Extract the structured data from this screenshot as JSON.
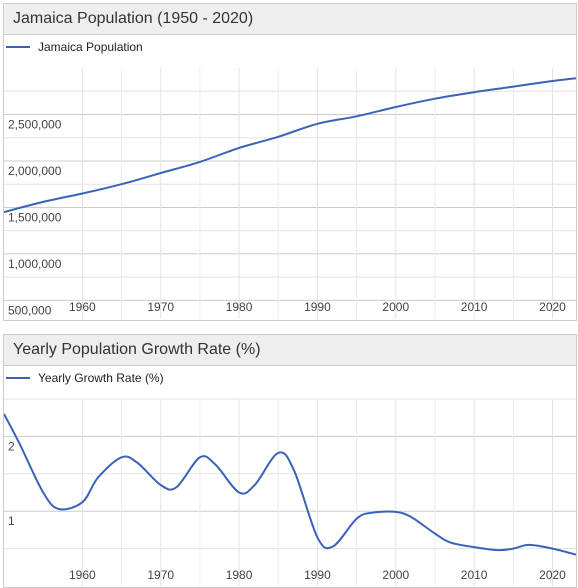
{
  "chart_data": [
    {
      "type": "line",
      "title": "Jamaica Population (1950 - 2020)",
      "series": [
        {
          "name": "Jamaica Population",
          "color": "#3a63b8",
          "x": [
            1950,
            1955,
            1960,
            1965,
            1970,
            1975,
            1980,
            1985,
            1990,
            1995,
            2000,
            2005,
            2010,
            2015,
            2020,
            2023
          ],
          "y": [
            1450000,
            1560000,
            1650000,
            1750000,
            1870000,
            1990000,
            2140000,
            2260000,
            2400000,
            2480000,
            2580000,
            2670000,
            2740000,
            2800000,
            2860000,
            2890000
          ]
        }
      ],
      "y_ticks": [
        500000,
        1000000,
        1500000,
        2000000,
        2500000
      ],
      "y_tick_labels": [
        "500,000",
        "1,000,000",
        "1,500,000",
        "2,000,000",
        "2,500,000"
      ],
      "x_ticks": [
        1960,
        1970,
        1980,
        1990,
        2000,
        2010,
        2020
      ],
      "x_tick_labels": [
        "1960",
        "1970",
        "1980",
        "1990",
        "2000",
        "2010",
        "2020"
      ],
      "xlim": [
        1950,
        2023
      ],
      "ylim": [
        300000,
        3000000
      ],
      "grid": true,
      "legend_position": "top-left"
    },
    {
      "type": "line",
      "title": "Yearly Population Growth Rate (%)",
      "series": [
        {
          "name": "Yearly Growth Rate (%)",
          "color": "#3a63b8",
          "x": [
            1950,
            1952,
            1955,
            1957,
            1960,
            1962,
            1965,
            1967,
            1970,
            1972,
            1975,
            1977,
            1980,
            1982,
            1985,
            1987,
            1990,
            1992,
            1995,
            1997,
            2000,
            2002,
            2005,
            2007,
            2010,
            2013,
            2015,
            2017,
            2020,
            2023
          ],
          "y": [
            2.3,
            1.9,
            1.25,
            1.03,
            1.12,
            1.45,
            1.72,
            1.65,
            1.35,
            1.32,
            1.72,
            1.62,
            1.25,
            1.35,
            1.78,
            1.55,
            0.65,
            0.53,
            0.9,
            0.98,
            0.99,
            0.92,
            0.7,
            0.58,
            0.52,
            0.48,
            0.5,
            0.55,
            0.5,
            0.42
          ]
        }
      ],
      "y_ticks": [
        1,
        2
      ],
      "y_tick_labels": [
        "1",
        "2"
      ],
      "x_ticks": [
        1960,
        1970,
        1980,
        1990,
        2000,
        2010,
        2020
      ],
      "x_tick_labels": [
        "1960",
        "1970",
        "1980",
        "1990",
        "2000",
        "2010",
        "2020"
      ],
      "xlim": [
        1950,
        2023
      ],
      "ylim": [
        0,
        2.5
      ],
      "grid": true,
      "legend_position": "top-left"
    }
  ]
}
